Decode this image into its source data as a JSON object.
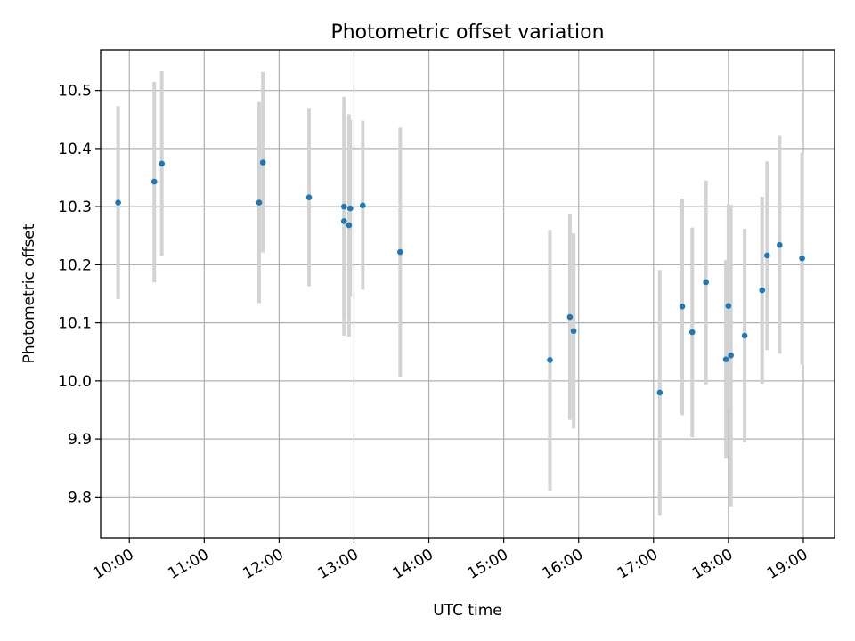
{
  "chart_data": {
    "type": "scatter",
    "title": "Photometric offset variation",
    "xlabel": "UTC time",
    "ylabel": "Photometric offset",
    "grid": true,
    "xlim": [
      "09:37",
      "19:25"
    ],
    "ylim": [
      9.73,
      10.57
    ],
    "x_ticks": [
      "10:00",
      "11:00",
      "12:00",
      "13:00",
      "14:00",
      "15:00",
      "16:00",
      "17:00",
      "18:00",
      "19:00"
    ],
    "y_ticks": [
      9.8,
      9.9,
      10.0,
      10.1,
      10.2,
      10.3,
      10.4,
      10.5
    ],
    "y_tick_labels": [
      "9.8",
      "9.9",
      "10.0",
      "10.1",
      "10.2",
      "10.3",
      "10.4",
      "10.5"
    ],
    "point_color": "#1f77b4",
    "errorbar_color": "#d3d3d3",
    "points": [
      {
        "t": "09:51",
        "y": 10.307,
        "ylo": 10.141,
        "yhi": 10.473
      },
      {
        "t": "10:20",
        "y": 10.343,
        "ylo": 10.17,
        "yhi": 10.515
      },
      {
        "t": "10:26",
        "y": 10.374,
        "ylo": 10.215,
        "yhi": 10.533
      },
      {
        "t": "11:44",
        "y": 10.307,
        "ylo": 10.134,
        "yhi": 10.48
      },
      {
        "t": "11:47",
        "y": 10.376,
        "ylo": 10.221,
        "yhi": 10.532
      },
      {
        "t": "12:24",
        "y": 10.316,
        "ylo": 10.163,
        "yhi": 10.47
      },
      {
        "t": "12:52",
        "y": 10.3,
        "ylo": 10.11,
        "yhi": 10.489
      },
      {
        "t": "12:52",
        "y": 10.275,
        "ylo": 10.078,
        "yhi": 10.472
      },
      {
        "t": "12:56",
        "y": 10.268,
        "ylo": 10.076,
        "yhi": 10.459
      },
      {
        "t": "12:57",
        "y": 10.297,
        "ylo": 10.145,
        "yhi": 10.449
      },
      {
        "t": "13:07",
        "y": 10.302,
        "ylo": 10.157,
        "yhi": 10.448
      },
      {
        "t": "13:37",
        "y": 10.222,
        "ylo": 10.006,
        "yhi": 10.436
      },
      {
        "t": "15:37",
        "y": 10.036,
        "ylo": 9.811,
        "yhi": 10.26
      },
      {
        "t": "15:53",
        "y": 10.11,
        "ylo": 9.933,
        "yhi": 10.288
      },
      {
        "t": "15:56",
        "y": 10.086,
        "ylo": 9.918,
        "yhi": 10.254
      },
      {
        "t": "17:05",
        "y": 9.98,
        "ylo": 9.768,
        "yhi": 10.191
      },
      {
        "t": "17:23",
        "y": 10.128,
        "ylo": 9.941,
        "yhi": 10.314
      },
      {
        "t": "17:31",
        "y": 10.084,
        "ylo": 9.903,
        "yhi": 10.264
      },
      {
        "t": "17:42",
        "y": 10.17,
        "ylo": 9.994,
        "yhi": 10.345
      },
      {
        "t": "17:58",
        "y": 10.037,
        "ylo": 9.866,
        "yhi": 10.208
      },
      {
        "t": "18:00",
        "y": 10.129,
        "ylo": 9.953,
        "yhi": 10.304
      },
      {
        "t": "18:02",
        "y": 10.044,
        "ylo": 9.784,
        "yhi": 10.303
      },
      {
        "t": "18:13",
        "y": 10.078,
        "ylo": 9.894,
        "yhi": 10.262
      },
      {
        "t": "18:27",
        "y": 10.156,
        "ylo": 9.995,
        "yhi": 10.317
      },
      {
        "t": "18:31",
        "y": 10.216,
        "ylo": 10.053,
        "yhi": 10.378
      },
      {
        "t": "18:41",
        "y": 10.234,
        "ylo": 10.047,
        "yhi": 10.422
      },
      {
        "t": "18:59",
        "y": 10.211,
        "ylo": 10.028,
        "yhi": 10.393
      }
    ]
  }
}
